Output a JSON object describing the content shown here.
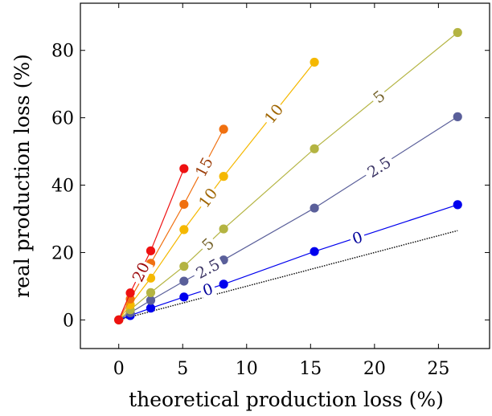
{
  "chart_data": {
    "type": "line",
    "xlabel": "theoretical production loss (%)",
    "ylabel": "real production loss (%)",
    "xlim": [
      -3,
      29
    ],
    "ylim": [
      -8.5,
      94
    ],
    "xticks": [
      0,
      5,
      10,
      15,
      20,
      25
    ],
    "yticks": [
      0,
      20,
      40,
      60,
      80
    ],
    "grid": false,
    "legend": "none",
    "reference_line": {
      "x": [
        0,
        26.5
      ],
      "y": [
        0,
        26.5
      ],
      "style": "dotted",
      "color": "#000000"
    },
    "series": [
      {
        "name": "0",
        "color": "#0000ee",
        "x": [
          0,
          0.9,
          2.5,
          5.1,
          8.2,
          15.3,
          26.5
        ],
        "y": [
          0,
          1.3,
          3.5,
          6.8,
          10.6,
          20.3,
          34.2
        ],
        "labels": [
          {
            "text": "0",
            "pos": 0.3,
            "side": "upper"
          },
          {
            "text": "0",
            "pos": 0.6,
            "side": "lower"
          }
        ]
      },
      {
        "name": "2.5",
        "color": "#5a5f9a",
        "x": [
          0,
          0.9,
          2.5,
          5.1,
          8.2,
          15.3,
          26.5
        ],
        "y": [
          0,
          2.1,
          5.8,
          11.5,
          17.8,
          33.2,
          60.3
        ],
        "labels": [
          {
            "text": "2.5",
            "pos": 0.45,
            "side": "upper"
          },
          {
            "text": "2.5",
            "pos": 0.6,
            "side": "lower"
          }
        ]
      },
      {
        "name": "5",
        "color": "#b4b442",
        "x": [
          0,
          0.9,
          2.5,
          5.1,
          8.2,
          15.3,
          26.5
        ],
        "y": [
          0,
          3,
          8.1,
          15.9,
          27,
          50.8,
          85.3
        ],
        "labels": [
          {
            "text": "5",
            "pos": 0.45,
            "side": "upper"
          },
          {
            "text": "5",
            "pos": 0.6,
            "side": "lower"
          }
        ]
      },
      {
        "name": "10",
        "color": "#f5b800",
        "x": [
          0,
          0.9,
          2.5,
          5.1,
          8.2,
          15.3
        ],
        "y": [
          0,
          4.5,
          12.4,
          26.8,
          42.6,
          76.5
        ],
        "labels": [
          {
            "text": "10",
            "pos": 0.55,
            "side": "upper"
          },
          {
            "text": "10",
            "pos": 0.6,
            "side": "lower"
          }
        ]
      },
      {
        "name": "15",
        "color": "#f07010",
        "x": [
          0,
          0.9,
          2.5,
          5.1,
          8.2
        ],
        "y": [
          0,
          6.2,
          16.8,
          34.3,
          56.6
        ],
        "labels": [
          {
            "text": "15",
            "pos": 0.5,
            "side": "lower"
          }
        ]
      },
      {
        "name": "20",
        "color": "#ee1111",
        "x": [
          0,
          0.9,
          2.5,
          5.1
        ],
        "y": [
          0,
          8,
          20.5,
          44.9
        ],
        "labels": [
          {
            "text": "20",
            "pos": 0.5,
            "side": "lower"
          }
        ]
      }
    ]
  }
}
